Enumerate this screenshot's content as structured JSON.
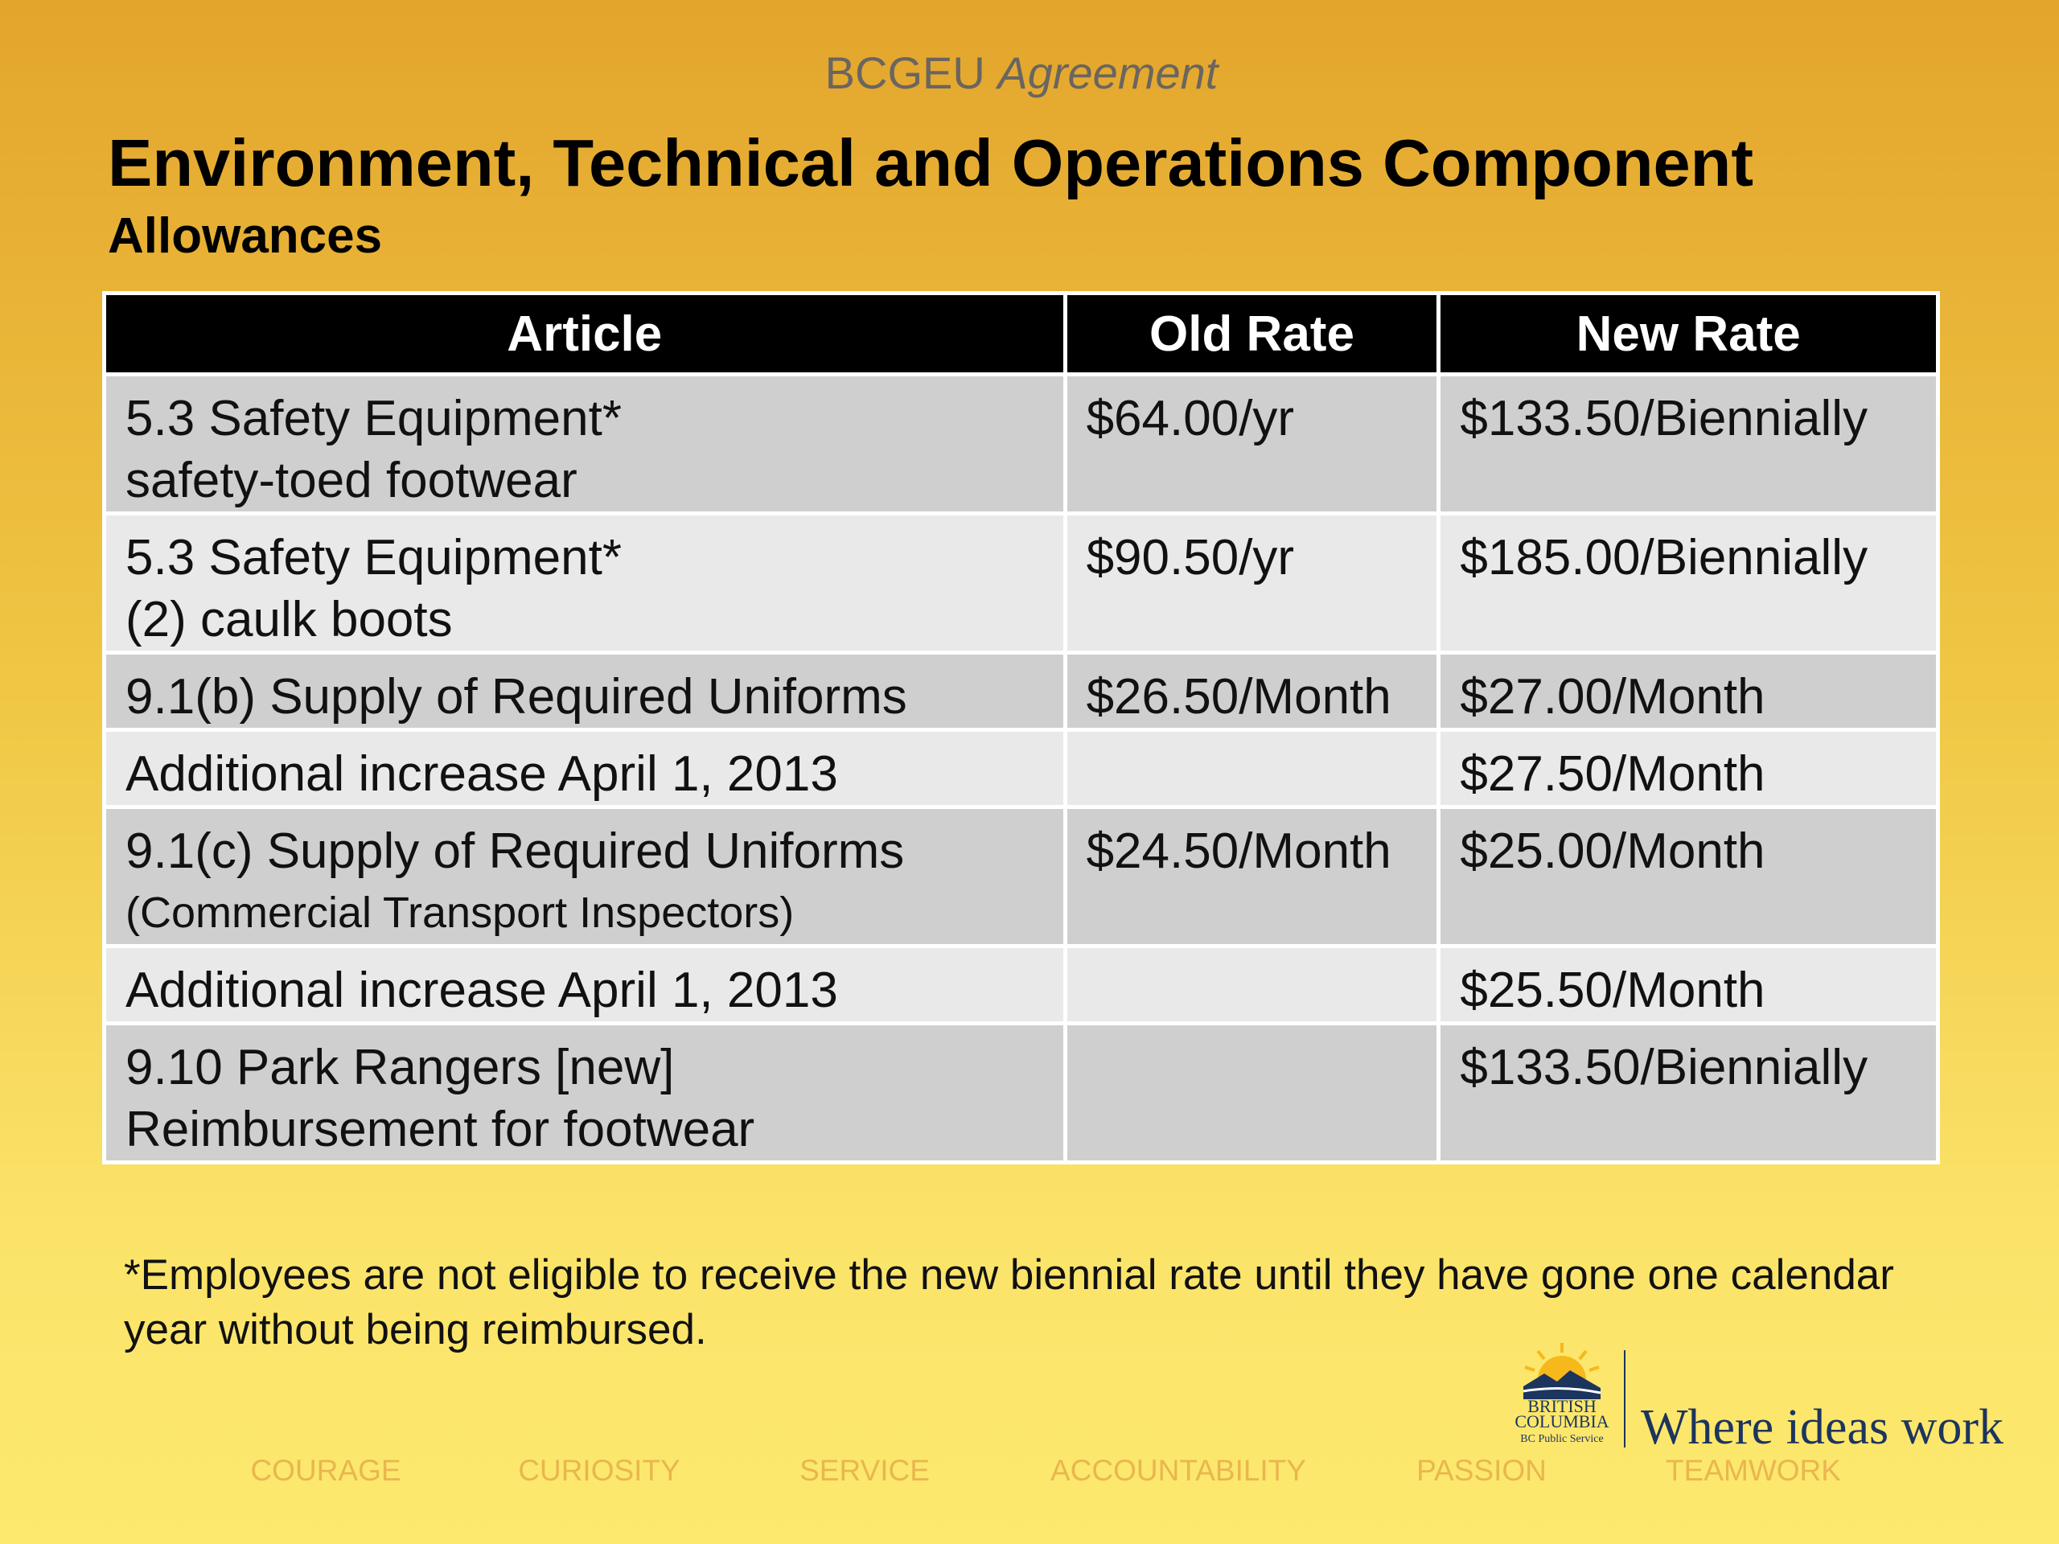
{
  "header": {
    "kicker": "BCGEU",
    "kicker_em": "Agreement",
    "title": "Environment, Technical and Operations Component",
    "subtitle": "Allowances"
  },
  "table": {
    "columns": [
      "Article",
      "Old Rate",
      "New Rate"
    ],
    "rows": [
      [
        [
          "5.3 Safety Equipment*",
          "safety-toed footwear"
        ],
        "$64.00/yr",
        "$133.50/Biennially"
      ],
      [
        [
          "5.3 Safety Equipment*",
          "(2) caulk boots"
        ],
        "$90.50/yr",
        "$185.00/Biennially"
      ],
      [
        [
          "9.1(b) Supply of Required Uniforms"
        ],
        "$26.50/Month",
        "$27.00/Month"
      ],
      [
        [
          "Additional increase April 1, 2013"
        ],
        null,
        "$27.50/Month"
      ],
      [
        [
          "9.1(c) Supply of Required Uniforms",
          "(Commercial Transport Inspectors)"
        ],
        "$24.50/Month",
        "$25.00/Month"
      ],
      [
        [
          "Additional increase April 1, 2013"
        ],
        null,
        "$25.50/Month"
      ],
      [
        [
          "9.10 Park Rangers [new]",
          "Reimbursement for footwear"
        ],
        null,
        "$133.50/Biennially"
      ]
    ]
  },
  "footnote": "*Employees are not eligible to receive the new biennial rate until they have gone one calendar year without being reimbursed.",
  "logo": {
    "line1": "BRITISH",
    "line2": "COLUMBIA",
    "line3": "BC Public Service",
    "tagline": "Where ideas work"
  },
  "values": [
    "COURAGE",
    "CURIOSITY",
    "SERVICE",
    "ACCOUNTABILITY",
    "PASSION",
    "TEAMWORK"
  ]
}
